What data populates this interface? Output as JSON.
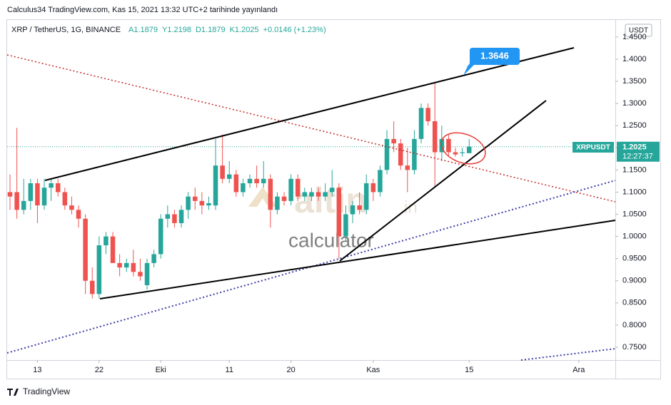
{
  "header": "Calculus34 TradingView.com, Kas 15, 2021 13:32 UTC+2 tarihinde yayınlandı",
  "footer": "TradingView",
  "watermark": {
    "brand": "altin",
    "suffix": "in",
    "caption": "calculator"
  },
  "annotation": "1.3646",
  "chart_data": {
    "type": "candlestick",
    "title": "XRP / TetherUS, 1G, BINANCE",
    "legend": [
      "A1.1879",
      "Y1.2198",
      "D1.1879",
      "K1.2025",
      "+0.0146 (+1.23%)"
    ],
    "currency": "USDT",
    "symbol": "XRPUSDT",
    "last_price": 1.2025,
    "countdown": "12:27:37",
    "up_color": "#26a69a",
    "down_color": "#ef5350",
    "ohlc": [
      [
        1.1,
        1.14,
        1.06,
        1.09
      ],
      [
        1.1,
        1.245,
        1.04,
        1.06
      ],
      [
        1.06,
        1.13,
        1.05,
        1.08
      ],
      [
        1.08,
        1.13,
        1.06,
        1.12
      ],
      [
        1.12,
        1.13,
        1.03,
        1.07
      ],
      [
        1.07,
        1.13,
        1.06,
        1.11
      ],
      [
        1.11,
        1.13,
        1.08,
        1.12
      ],
      [
        1.12,
        1.13,
        1.09,
        1.1
      ],
      [
        1.1,
        1.11,
        1.06,
        1.07
      ],
      [
        1.07,
        1.09,
        1.05,
        1.06
      ],
      [
        1.06,
        1.07,
        1.02,
        1.04
      ],
      [
        1.04,
        1.05,
        0.87,
        0.9
      ],
      [
        0.9,
        0.93,
        0.86,
        0.87
      ],
      [
        0.87,
        1.0,
        0.86,
        0.98
      ],
      [
        0.98,
        1.01,
        0.96,
        1.0
      ],
      [
        1.0,
        1.01,
        0.94,
        0.94
      ],
      [
        0.94,
        0.96,
        0.91,
        0.93
      ],
      [
        0.93,
        0.95,
        0.92,
        0.94
      ],
      [
        0.94,
        0.97,
        0.91,
        0.92
      ],
      [
        0.92,
        0.95,
        0.9,
        0.91
      ],
      [
        0.89,
        0.95,
        0.88,
        0.94
      ],
      [
        0.94,
        0.97,
        0.93,
        0.96
      ],
      [
        0.96,
        1.05,
        0.95,
        1.04
      ],
      [
        1.04,
        1.07,
        1.02,
        1.05
      ],
      [
        1.05,
        1.06,
        1.02,
        1.03
      ],
      [
        1.03,
        1.07,
        1.02,
        1.06
      ],
      [
        1.06,
        1.1,
        1.04,
        1.09
      ],
      [
        1.09,
        1.11,
        1.06,
        1.08
      ],
      [
        1.08,
        1.1,
        1.05,
        1.07
      ],
      [
        1.07,
        1.09,
        1.06,
        1.075
      ],
      [
        1.07,
        1.22,
        1.06,
        1.16
      ],
      [
        1.16,
        1.23,
        1.12,
        1.13
      ],
      [
        1.13,
        1.17,
        1.12,
        1.14
      ],
      [
        1.14,
        1.15,
        1.09,
        1.1
      ],
      [
        1.1,
        1.13,
        1.09,
        1.12
      ],
      [
        1.12,
        1.14,
        1.11,
        1.13
      ],
      [
        1.13,
        1.16,
        1.11,
        1.12
      ],
      [
        1.12,
        1.17,
        1.11,
        1.13
      ],
      [
        1.13,
        1.14,
        1.02,
        1.06
      ],
      [
        1.06,
        1.1,
        1.05,
        1.09
      ],
      [
        1.09,
        1.1,
        1.07,
        1.08
      ],
      [
        1.08,
        1.14,
        1.07,
        1.13
      ],
      [
        1.13,
        1.14,
        1.08,
        1.09
      ],
      [
        1.09,
        1.11,
        1.08,
        1.1
      ],
      [
        1.09,
        1.11,
        1.08,
        1.1
      ],
      [
        1.1,
        1.11,
        1.08,
        1.09
      ],
      [
        1.09,
        1.12,
        1.08,
        1.1
      ],
      [
        1.1,
        1.15,
        1.09,
        1.11
      ],
      [
        1.11,
        1.12,
        0.95,
        1.0
      ],
      [
        1.0,
        1.07,
        0.99,
        1.05
      ],
      [
        1.05,
        1.08,
        1.03,
        1.07
      ],
      [
        1.07,
        1.1,
        1.05,
        1.06
      ],
      [
        1.06,
        1.14,
        1.05,
        1.12
      ],
      [
        1.12,
        1.13,
        1.08,
        1.1
      ],
      [
        1.1,
        1.16,
        1.09,
        1.15
      ],
      [
        1.15,
        1.24,
        1.14,
        1.22
      ],
      [
        1.22,
        1.26,
        1.19,
        1.21
      ],
      [
        1.21,
        1.22,
        1.15,
        1.16
      ],
      [
        1.16,
        1.2,
        1.1,
        1.15
      ],
      [
        1.15,
        1.24,
        1.14,
        1.22
      ],
      [
        1.22,
        1.3,
        1.21,
        1.29
      ],
      [
        1.29,
        1.3,
        1.25,
        1.26
      ],
      [
        1.26,
        1.349,
        1.11,
        1.19
      ],
      [
        1.19,
        1.25,
        1.17,
        1.22
      ],
      [
        1.22,
        1.23,
        1.18,
        1.19
      ],
      [
        1.19,
        1.2,
        1.18,
        1.185
      ],
      [
        1.188,
        1.2,
        1.18,
        1.19
      ],
      [
        1.1879,
        1.2198,
        1.1879,
        1.2025
      ]
    ],
    "xlim": [
      -0.42,
      88.33
    ],
    "xticks": [
      {
        "value": 4,
        "label": "13"
      },
      {
        "value": 13,
        "label": "22"
      },
      {
        "value": 22,
        "label": "Eki"
      },
      {
        "value": 32,
        "label": "11"
      },
      {
        "value": 41,
        "label": "20"
      },
      {
        "value": 53,
        "label": "Kas"
      },
      {
        "value": 67,
        "label": "15"
      },
      {
        "value": 83,
        "label": "Ara"
      }
    ],
    "ylim": [
      0.721,
      1.4885
    ],
    "yticks": [
      {
        "value": 0.75,
        "label": "0.7500"
      },
      {
        "value": 0.8,
        "label": "0.8000"
      },
      {
        "value": 0.85,
        "label": "0.8500"
      },
      {
        "value": 0.9,
        "label": "0.9000"
      },
      {
        "value": 0.95,
        "label": "0.9500"
      },
      {
        "value": 1.0,
        "label": "1.0000"
      },
      {
        "value": 1.05,
        "label": "1.0500"
      },
      {
        "value": 1.1,
        "label": "1.1000"
      },
      {
        "value": 1.15,
        "label": "1.1500"
      },
      {
        "value": 1.2,
        "label": "1.2000"
      },
      {
        "value": 1.25,
        "label": "1.2500"
      },
      {
        "value": 1.3,
        "label": "1.3000"
      },
      {
        "value": 1.35,
        "label": "1.3500"
      },
      {
        "value": 1.4,
        "label": "1.4000"
      },
      {
        "value": 1.45,
        "label": "1.4500"
      }
    ]
  }
}
